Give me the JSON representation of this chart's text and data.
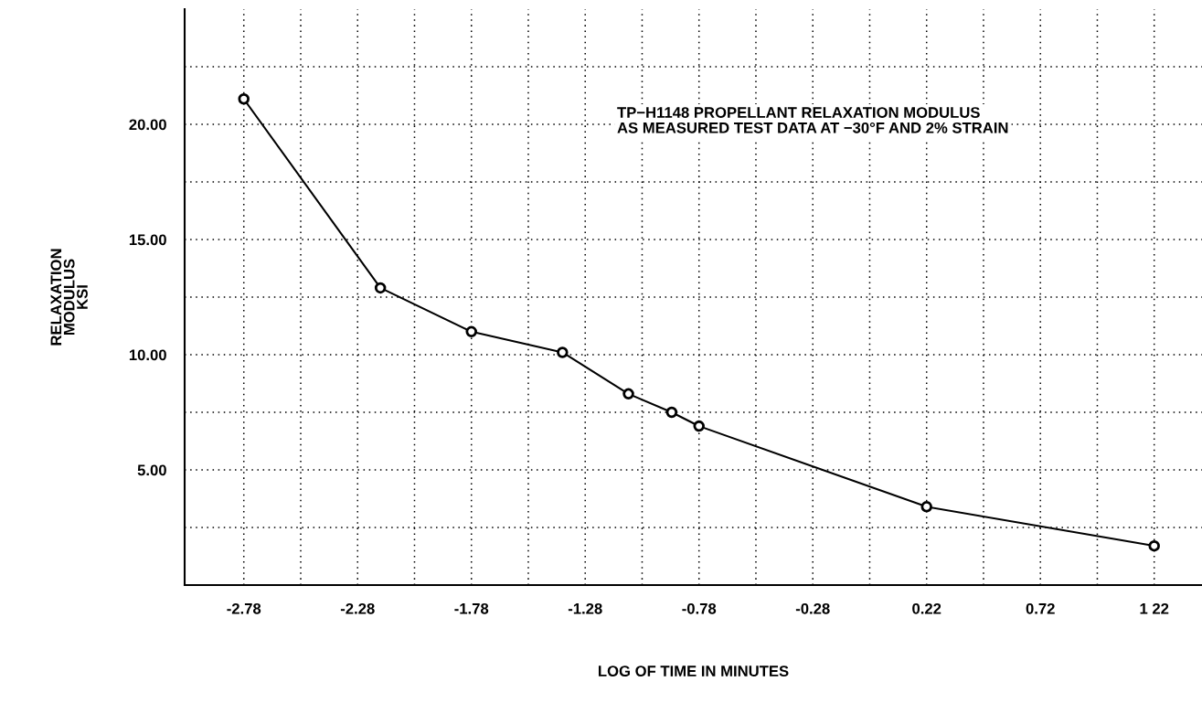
{
  "chart_data": {
    "type": "line",
    "xlabel": "LOG OF TIME IN MINUTES",
    "ylabel": "RELAXATION\nMODULUS\nKSI",
    "annotations": [
      "TP−H1148 PROPELLANT RELAXATION MODULUS\nAS MEASURED TEST DATA AT −30°F AND 2% STRAIN"
    ],
    "x": [
      -2.78,
      -2.18,
      -1.78,
      -1.38,
      -1.09,
      -0.9,
      -0.78,
      0.22,
      1.22
    ],
    "series": [
      {
        "color": "#000000",
        "values": [
          21.1,
          12.9,
          11.0,
          10.1,
          8.3,
          7.5,
          6.9,
          3.4,
          1.7
        ]
      }
    ],
    "xlim": [
      -3.04,
      1.43
    ],
    "xticks": [
      -2.78,
      {
        "value": -2.53,
        "label": null
      },
      -2.28,
      {
        "value": -2.03,
        "label": null
      },
      -1.78,
      {
        "value": -1.53,
        "label": null
      },
      -1.28,
      {
        "value": -1.03,
        "label": null
      },
      -0.78,
      {
        "value": -0.53,
        "label": null
      },
      -0.28,
      {
        "value": -0.03,
        "label": null
      },
      0.22,
      {
        "value": 0.47,
        "label": null
      },
      0.72,
      {
        "value": 0.97,
        "label": null
      },
      {
        "value": 1.22,
        "label": "1 22"
      }
    ],
    "ylim": [
      0,
      25
    ],
    "yticks": [
      {
        "value": 2.5,
        "label": null
      },
      {
        "value": 5,
        "label": "5.00"
      },
      {
        "value": 7.5,
        "label": null
      },
      {
        "value": 10,
        "label": "10.00"
      },
      {
        "value": 12.5,
        "label": null
      },
      {
        "value": 15,
        "label": "15.00"
      },
      {
        "value": 17.5,
        "label": null
      },
      {
        "value": 20,
        "label": "20.00"
      },
      {
        "value": 22.5,
        "label": null
      }
    ],
    "grid": true,
    "marker": "circle",
    "line_style": "solid"
  }
}
